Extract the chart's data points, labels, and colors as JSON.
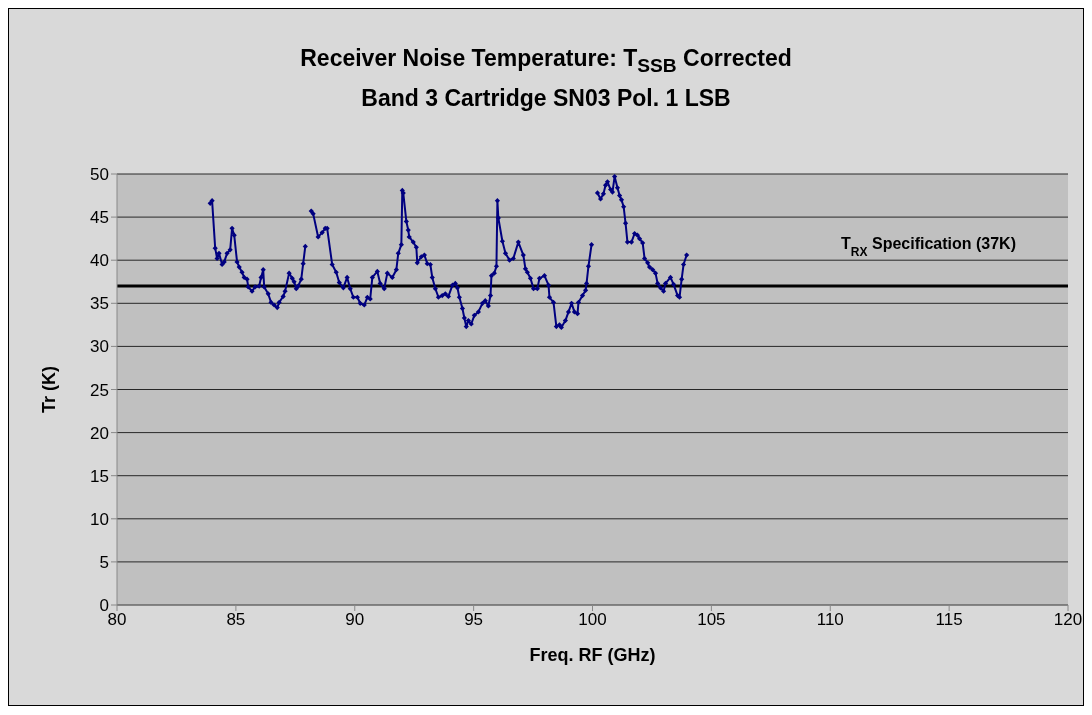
{
  "chart_data": {
    "type": "line",
    "title": "Receiver Noise Temperature: T$_{SSB}$ Corrected",
    "subtitle": "Band 3 Cartridge SN03 Pol. 1 LSB",
    "xlabel": "Freq. RF (GHz)",
    "ylabel": "Tr (K)",
    "xlim": [
      80,
      120
    ],
    "xticks": [
      80,
      85,
      90,
      95,
      100,
      105,
      110,
      115,
      120
    ],
    "ylim": [
      0,
      50
    ],
    "yticks": [
      0,
      5,
      10,
      15,
      20,
      25,
      30,
      35,
      40,
      45,
      50
    ],
    "grid": "y",
    "legend": false,
    "marker": "diamond",
    "line_style": "solid",
    "ref_lines": [
      {
        "axis": "y",
        "value": 37,
        "label": "T$_{RX}$ Specification (37K)",
        "color": "#000000"
      }
    ],
    "x": [
      83.92,
      84.0,
      84.13,
      84.21,
      84.29,
      84.42,
      84.51,
      84.63,
      84.76,
      84.84,
      84.93,
      85.05,
      85.14,
      85.26,
      85.35,
      85.47,
      85.52,
      85.68,
      85.81,
      85.98,
      86.06,
      86.15,
      86.19,
      86.36,
      86.48,
      86.61,
      86.74,
      86.82,
      86.99,
      87.07,
      87.24,
      87.37,
      87.45,
      87.54,
      87.62,
      87.75,
      87.83,
      87.92,
      88.04,
      88.17,
      88.25,
      88.46,
      88.63,
      88.76,
      88.84,
      89.05,
      89.22,
      89.35,
      89.52,
      89.68,
      89.81,
      89.94,
      90.11,
      90.23,
      90.4,
      90.53,
      90.65,
      90.74,
      90.95,
      91.07,
      91.24,
      91.37,
      91.58,
      91.75,
      91.83,
      91.96,
      92.0,
      92.04,
      92.17,
      92.25,
      92.29,
      92.46,
      92.59,
      92.63,
      92.8,
      92.93,
      93.05,
      93.18,
      93.26,
      93.39,
      93.52,
      93.68,
      93.81,
      93.94,
      94.11,
      94.23,
      94.32,
      94.4,
      94.53,
      94.61,
      94.69,
      94.78,
      94.9,
      95.03,
      95.2,
      95.37,
      95.49,
      95.62,
      95.71,
      95.75,
      95.87,
      95.96,
      96.0,
      96.04,
      96.21,
      96.34,
      96.51,
      96.67,
      96.88,
      97.09,
      97.18,
      97.26,
      97.39,
      97.52,
      97.68,
      97.77,
      97.98,
      98.15,
      98.19,
      98.36,
      98.48,
      98.61,
      98.69,
      98.86,
      98.99,
      99.12,
      99.24,
      99.37,
      99.41,
      99.58,
      99.71,
      99.75,
      99.83,
      99.96,
      100.08,
      100.21,
      100.34,
      100.46,
      100.55,
      100.63,
      100.76,
      100.84,
      100.93,
      101.05,
      101.14,
      101.22,
      101.31,
      101.39,
      101.47,
      101.64,
      101.77,
      101.89,
      101.98,
      102.11,
      102.19,
      102.32,
      102.4,
      102.53,
      102.65,
      102.74,
      102.86,
      102.99,
      103.07,
      103.28,
      103.41,
      103.58,
      103.66,
      103.75,
      103.83,
      103.96
    ],
    "series": [
      {
        "color": "#000080",
        "values": [
          46.6,
          46.9,
          41.4,
          40.2,
          40.8,
          39.5,
          39.8,
          40.8,
          41.2,
          43.7,
          42.9,
          39.8,
          39.2,
          38.6,
          38.0,
          37.8,
          36.9,
          36.4,
          36.9,
          37.0,
          38.0,
          38.9,
          36.9,
          36.1,
          35.1,
          34.8,
          34.5,
          35.1,
          35.8,
          36.4,
          38.5,
          37.9,
          37.5,
          36.7,
          37.0,
          37.8,
          39.6,
          41.6,
          null,
          45.7,
          45.4,
          42.7,
          43.2,
          43.7,
          43.7,
          39.5,
          38.6,
          37.4,
          36.8,
          38.0,
          36.7,
          35.7,
          35.7,
          35.0,
          34.8,
          35.7,
          35.5,
          38.0,
          38.7,
          37.3,
          36.7,
          38.5,
          38.0,
          38.9,
          40.8,
          41.8,
          48.1,
          47.8,
          44.5,
          43.5,
          42.7,
          42.1,
          41.5,
          39.7,
          40.4,
          40.6,
          39.6,
          39.5,
          38.0,
          36.7,
          35.7,
          35.9,
          36.1,
          35.8,
          37.1,
          37.3,
          36.8,
          35.7,
          34.4,
          33.3,
          32.3,
          33.0,
          32.6,
          33.6,
          34.0,
          35.0,
          35.3,
          34.7,
          35.9,
          38.2,
          38.5,
          39.3,
          46.9,
          44.9,
          42.2,
          40.8,
          40.0,
          40.2,
          42.1,
          40.6,
          39.0,
          38.6,
          37.9,
          36.7,
          36.7,
          37.9,
          38.2,
          37.1,
          35.7,
          35.1,
          32.3,
          32.5,
          32.2,
          33.0,
          34.0,
          35.0,
          34.0,
          33.8,
          35.1,
          35.9,
          36.5,
          37.3,
          39.3,
          41.8,
          null,
          47.8,
          47.1,
          47.7,
          48.7,
          49.1,
          48.2,
          47.9,
          49.7,
          48.4,
          47.5,
          47.0,
          46.2,
          44.3,
          42.1,
          42.1,
          43.1,
          42.9,
          42.5,
          42.0,
          40.2,
          39.7,
          39.2,
          38.9,
          38.5,
          37.3,
          36.8,
          36.4,
          37.3,
          38.0,
          37.2,
          35.9,
          35.7,
          37.8,
          39.5,
          40.6
        ]
      }
    ]
  }
}
